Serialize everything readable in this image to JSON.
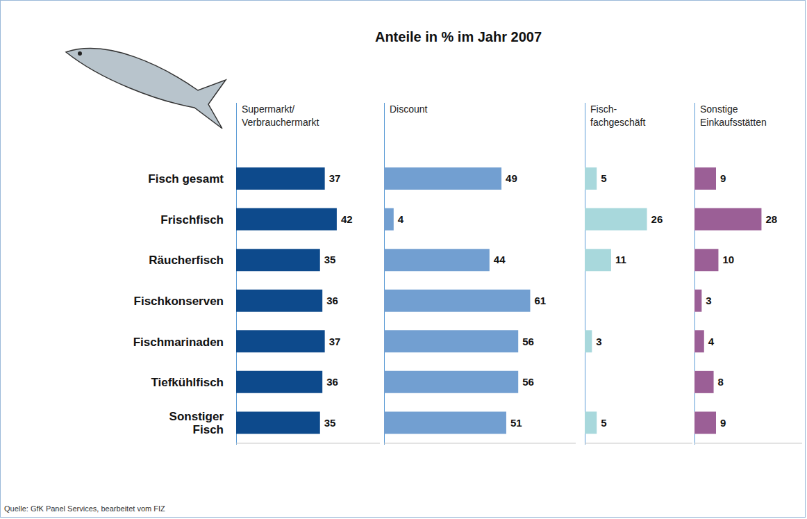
{
  "title": "Anteile in % im Jahr 2007",
  "source": "Quelle: GfK Panel Services, bearbeitet vom FIZ",
  "chart_data": [
    {
      "type": "bar",
      "title": "Supermarkt/ Verbrauchermarkt",
      "orientation": "horizontal",
      "categories": [
        "Fisch gesamt",
        "Frischfisch",
        "Räucherfisch",
        "Fischkonserven",
        "Fischmarinaden",
        "Tiefkühlfisch",
        "Sonstiger Fisch"
      ],
      "values": [
        37,
        42,
        35,
        36,
        37,
        36,
        35
      ],
      "color": "#0d4a8c",
      "xlim": [
        0,
        60
      ],
      "data_labels": true,
      "tick_labels": "y"
    },
    {
      "type": "bar",
      "title": "Discount",
      "orientation": "horizontal",
      "categories": [
        "Fisch gesamt",
        "Frischfisch",
        "Räucherfisch",
        "Fischkonserven",
        "Fischmarinaden",
        "Tiefkühlfisch",
        "Sonstiger Fisch"
      ],
      "values": [
        49,
        4,
        44,
        61,
        56,
        56,
        51
      ],
      "color": "#729fd1",
      "xlim": [
        0,
        80
      ],
      "data_labels": true,
      "tick_labels": false
    },
    {
      "type": "bar",
      "title": "Fisch- fachgeschäft",
      "orientation": "horizontal",
      "categories": [
        "Fisch gesamt",
        "Frischfisch",
        "Räucherfisch",
        "Fischkonserven",
        "Fischmarinaden",
        "Tiefkühlfisch",
        "Sonstiger Fisch"
      ],
      "values": [
        5,
        26,
        11,
        0,
        3,
        0,
        5
      ],
      "color": "#a8d8dc",
      "xlim": [
        0,
        45
      ],
      "data_labels": true,
      "tick_labels": false
    },
    {
      "type": "bar",
      "title": "Sonstige Einkaufsstätten",
      "orientation": "horizontal",
      "categories": [
        "Fisch gesamt",
        "Frischfisch",
        "Räucherfisch",
        "Fischkonserven",
        "Fischmarinaden",
        "Tiefkühlfisch",
        "Sonstiger Fisch"
      ],
      "values": [
        9,
        28,
        10,
        3,
        4,
        8,
        9
      ],
      "color": "#9b5f96",
      "xlim": [
        0,
        45
      ],
      "data_labels": true,
      "tick_labels": false
    }
  ]
}
